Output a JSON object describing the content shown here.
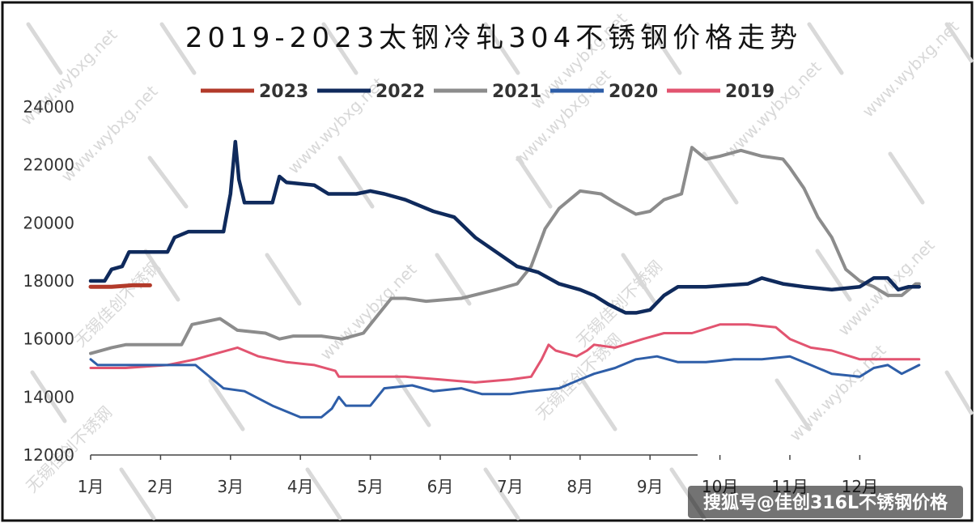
{
  "chart_data": {
    "type": "line",
    "title": "2019-2023太钢冷轧304不锈钢价格走势",
    "xlabel": "",
    "ylabel": "",
    "categories": [
      "1月",
      "2月",
      "3月",
      "4月",
      "5月",
      "6月",
      "7月",
      "8月",
      "9月",
      "10月",
      "11月",
      "12月"
    ],
    "x_range": [
      1,
      12.85
    ],
    "ylim": [
      12000,
      24000
    ],
    "yticks": [
      12000,
      14000,
      16000,
      18000,
      20000,
      22000,
      24000
    ],
    "ytick_labels": [
      "12000",
      "14000",
      "16000",
      "18000",
      "20000",
      "22000",
      "24000"
    ],
    "legend_position": "top",
    "grid": false,
    "series": [
      {
        "name": "2023",
        "color": "#b23a2a",
        "points": [
          [
            1.0,
            17800
          ],
          [
            1.3,
            17800
          ],
          [
            1.6,
            17850
          ],
          [
            1.85,
            17850
          ]
        ]
      },
      {
        "name": "2022",
        "color": "#0f2a5c",
        "points": [
          [
            1.0,
            18000
          ],
          [
            1.2,
            18000
          ],
          [
            1.3,
            18400
          ],
          [
            1.45,
            18500
          ],
          [
            1.55,
            19000
          ],
          [
            2.1,
            19000
          ],
          [
            2.2,
            19500
          ],
          [
            2.4,
            19700
          ],
          [
            2.9,
            19700
          ],
          [
            3.0,
            21000
          ],
          [
            3.07,
            22800
          ],
          [
            3.12,
            21500
          ],
          [
            3.2,
            20700
          ],
          [
            3.6,
            20700
          ],
          [
            3.7,
            21600
          ],
          [
            3.8,
            21400
          ],
          [
            4.2,
            21300
          ],
          [
            4.4,
            21000
          ],
          [
            4.8,
            21000
          ],
          [
            5.0,
            21100
          ],
          [
            5.2,
            21000
          ],
          [
            5.5,
            20800
          ],
          [
            5.9,
            20400
          ],
          [
            6.2,
            20200
          ],
          [
            6.5,
            19500
          ],
          [
            6.8,
            19000
          ],
          [
            7.1,
            18500
          ],
          [
            7.4,
            18300
          ],
          [
            7.7,
            17900
          ],
          [
            8.0,
            17700
          ],
          [
            8.2,
            17500
          ],
          [
            8.4,
            17200
          ],
          [
            8.65,
            16900
          ],
          [
            8.8,
            16900
          ],
          [
            9.0,
            17000
          ],
          [
            9.2,
            17500
          ],
          [
            9.4,
            17800
          ],
          [
            9.8,
            17800
          ],
          [
            10.4,
            17900
          ],
          [
            10.6,
            18100
          ],
          [
            10.9,
            17900
          ],
          [
            11.2,
            17800
          ],
          [
            11.6,
            17700
          ],
          [
            12.0,
            17800
          ],
          [
            12.2,
            18100
          ],
          [
            12.4,
            18100
          ],
          [
            12.55,
            17700
          ],
          [
            12.7,
            17800
          ],
          [
            12.85,
            17800
          ]
        ]
      },
      {
        "name": "2021",
        "color": "#8c8c8c",
        "points": [
          [
            1.0,
            15500
          ],
          [
            1.3,
            15700
          ],
          [
            1.5,
            15800
          ],
          [
            2.3,
            15800
          ],
          [
            2.45,
            16500
          ],
          [
            2.85,
            16700
          ],
          [
            3.1,
            16300
          ],
          [
            3.5,
            16200
          ],
          [
            3.7,
            16000
          ],
          [
            3.9,
            16100
          ],
          [
            4.3,
            16100
          ],
          [
            4.6,
            16000
          ],
          [
            4.9,
            16200
          ],
          [
            5.1,
            16800
          ],
          [
            5.3,
            17400
          ],
          [
            5.5,
            17400
          ],
          [
            5.8,
            17300
          ],
          [
            6.3,
            17400
          ],
          [
            6.8,
            17700
          ],
          [
            7.1,
            17900
          ],
          [
            7.3,
            18500
          ],
          [
            7.5,
            19800
          ],
          [
            7.7,
            20500
          ],
          [
            8.0,
            21100
          ],
          [
            8.3,
            21000
          ],
          [
            8.5,
            20700
          ],
          [
            8.8,
            20300
          ],
          [
            9.0,
            20400
          ],
          [
            9.2,
            20800
          ],
          [
            9.45,
            21000
          ],
          [
            9.6,
            22600
          ],
          [
            9.8,
            22200
          ],
          [
            10.0,
            22300
          ],
          [
            10.3,
            22500
          ],
          [
            10.6,
            22300
          ],
          [
            10.9,
            22200
          ],
          [
            11.0,
            21900
          ],
          [
            11.2,
            21200
          ],
          [
            11.4,
            20200
          ],
          [
            11.6,
            19500
          ],
          [
            11.8,
            18400
          ],
          [
            12.0,
            18000
          ],
          [
            12.2,
            17800
          ],
          [
            12.4,
            17500
          ],
          [
            12.6,
            17500
          ],
          [
            12.8,
            17900
          ],
          [
            12.85,
            17900
          ]
        ]
      },
      {
        "name": "2020",
        "color": "#2e5ea8",
        "points": [
          [
            1.0,
            15300
          ],
          [
            1.1,
            15100
          ],
          [
            2.5,
            15100
          ],
          [
            2.7,
            14700
          ],
          [
            2.9,
            14300
          ],
          [
            3.2,
            14200
          ],
          [
            3.6,
            13700
          ],
          [
            4.0,
            13300
          ],
          [
            4.3,
            13300
          ],
          [
            4.45,
            13600
          ],
          [
            4.55,
            14000
          ],
          [
            4.65,
            13700
          ],
          [
            5.0,
            13700
          ],
          [
            5.2,
            14300
          ],
          [
            5.6,
            14400
          ],
          [
            5.9,
            14200
          ],
          [
            6.3,
            14300
          ],
          [
            6.6,
            14100
          ],
          [
            7.0,
            14100
          ],
          [
            7.3,
            14200
          ],
          [
            7.7,
            14300
          ],
          [
            8.0,
            14600
          ],
          [
            8.2,
            14800
          ],
          [
            8.5,
            15000
          ],
          [
            8.8,
            15300
          ],
          [
            9.1,
            15400
          ],
          [
            9.4,
            15200
          ],
          [
            9.8,
            15200
          ],
          [
            10.2,
            15300
          ],
          [
            10.6,
            15300
          ],
          [
            11.0,
            15400
          ],
          [
            11.3,
            15100
          ],
          [
            11.6,
            14800
          ],
          [
            12.0,
            14700
          ],
          [
            12.2,
            15000
          ],
          [
            12.4,
            15100
          ],
          [
            12.6,
            14800
          ],
          [
            12.85,
            15100
          ]
        ]
      },
      {
        "name": "2019",
        "color": "#e25470",
        "points": [
          [
            1.0,
            15000
          ],
          [
            1.5,
            15000
          ],
          [
            2.1,
            15100
          ],
          [
            2.5,
            15300
          ],
          [
            2.8,
            15500
          ],
          [
            3.1,
            15700
          ],
          [
            3.4,
            15400
          ],
          [
            3.8,
            15200
          ],
          [
            4.2,
            15100
          ],
          [
            4.5,
            14900
          ],
          [
            4.55,
            14700
          ],
          [
            5.0,
            14700
          ],
          [
            5.5,
            14700
          ],
          [
            6.0,
            14600
          ],
          [
            6.5,
            14500
          ],
          [
            7.0,
            14600
          ],
          [
            7.3,
            14700
          ],
          [
            7.45,
            15300
          ],
          [
            7.55,
            15800
          ],
          [
            7.65,
            15600
          ],
          [
            7.8,
            15500
          ],
          [
            7.95,
            15400
          ],
          [
            8.1,
            15600
          ],
          [
            8.2,
            15800
          ],
          [
            8.5,
            15700
          ],
          [
            8.9,
            16000
          ],
          [
            9.2,
            16200
          ],
          [
            9.6,
            16200
          ],
          [
            10.0,
            16500
          ],
          [
            10.4,
            16500
          ],
          [
            10.8,
            16400
          ],
          [
            11.0,
            16000
          ],
          [
            11.3,
            15700
          ],
          [
            11.6,
            15600
          ],
          [
            12.0,
            15300
          ],
          [
            12.4,
            15300
          ],
          [
            12.85,
            15300
          ]
        ]
      }
    ]
  },
  "watermark": {
    "site": "www.wybxg.net",
    "cn": "无锡佳创不锈钢"
  },
  "credit": {
    "text": "搜狐号@佳创316L不锈钢价格"
  },
  "colors": {
    "background": "#ffffff",
    "frame": "#111111",
    "axis": "#444444"
  }
}
